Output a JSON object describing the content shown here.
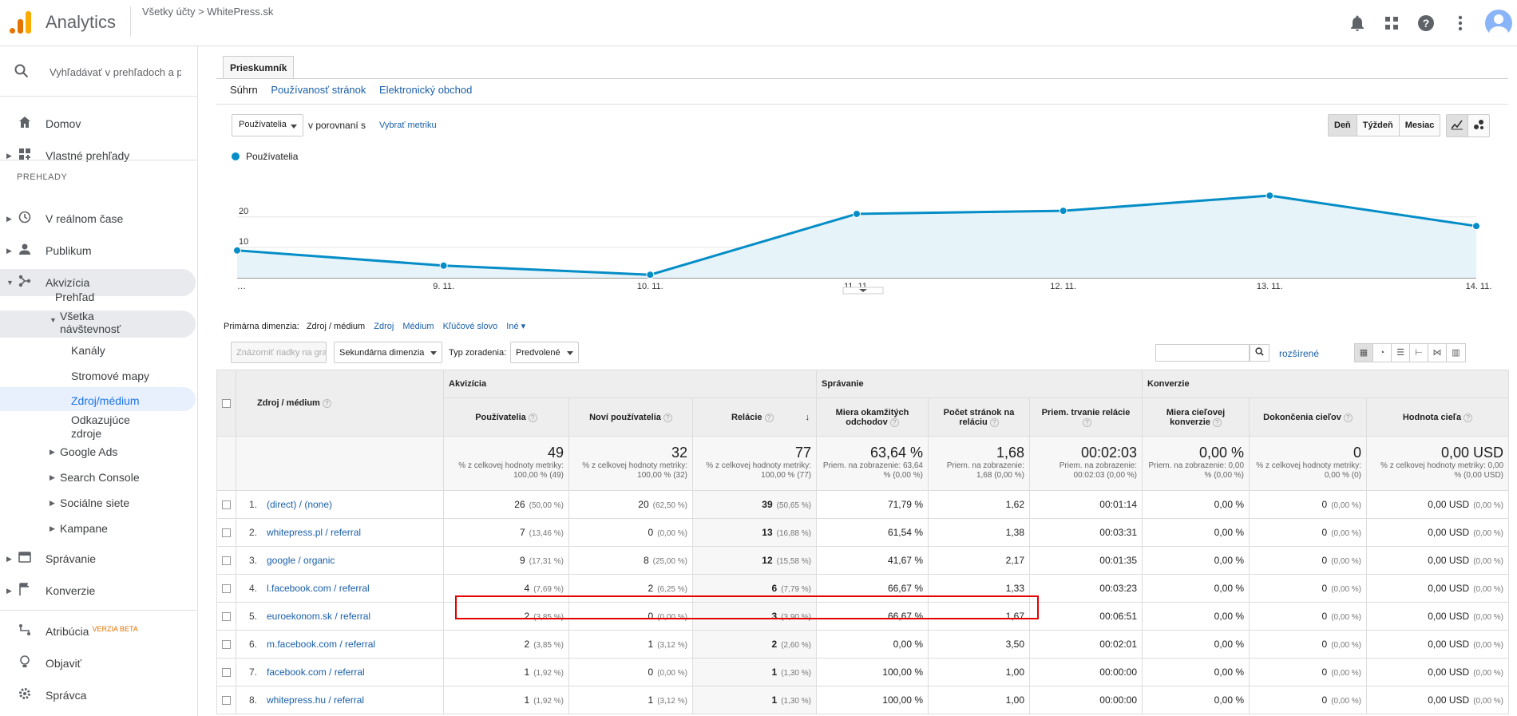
{
  "app": {
    "name": "Analytics",
    "breadcrumb": "Všetky účty > WhitePress.sk"
  },
  "topicons": [
    "bell-icon",
    "apps-icon",
    "help-icon",
    "more-icon"
  ],
  "sidebar": {
    "search_placeholder": "Vyhľadávať v prehľadoch a p",
    "home": "Domov",
    "custom": "Vlastné prehľady",
    "section": "PREHĽADY",
    "realtime": "V reálnom čase",
    "audience": "Publikum",
    "acquisition": "Akvizícia",
    "overview": "Prehľad",
    "alltraffic": "Všetka návštevnosť",
    "channels": "Kanály",
    "treemaps": "Stromové mapy",
    "sourcemedium": "Zdroj/médium",
    "referrals": "Odkazujúce zdroje",
    "googleads": "Google Ads",
    "searchconsole": "Search Console",
    "social": "Sociálne siete",
    "campaigns": "Kampane",
    "behavior": "Správanie",
    "conversions": "Konverzie",
    "attribution": "Atribúcia",
    "beta": "VERZIA BETA",
    "discover": "Objaviť",
    "admin": "Správca"
  },
  "tabs": {
    "explorer": "Prieskumník",
    "summary": "Súhrn",
    "usage": "Používanosť stránok",
    "ecommerce": "Elektronický obchod"
  },
  "chart_controls": {
    "metric": "Používatelia",
    "compare": "v porovnaní s",
    "pick": "Vybrať metriku",
    "day": "Deň",
    "week": "Týždeň",
    "month": "Mesiac"
  },
  "chart_data": {
    "type": "area",
    "series": [
      {
        "name": "Používatelia",
        "values": [
          9,
          4,
          1,
          21,
          22,
          27,
          17
        ]
      }
    ],
    "x": [
      "…",
      "9. 11.",
      "10. 11.",
      "11. 11.",
      "12. 11.",
      "13. 11.",
      "14. 11."
    ],
    "yticks": [
      "20",
      "10"
    ],
    "ylim": [
      0,
      32
    ],
    "color": "#058dc7"
  },
  "dims": {
    "label": "Primárna dimenzia:",
    "current": "Zdroj / médium",
    "source": "Zdroj",
    "medium": "Médium",
    "keyword": "Kľúčové slovo",
    "other": "Iné"
  },
  "toolbar": {
    "plot": "Znázorniť riadky na grafe",
    "secondary": "Sekundárna dimenzia",
    "sortlabel": "Typ zoradenia:",
    "sort": "Predvolené",
    "advanced": "rozšírené"
  },
  "table": {
    "groups": {
      "acq": "Akvizícia",
      "beh": "Správanie",
      "conv": "Konverzie"
    },
    "dimcol": "Zdroj / médium",
    "cols": [
      "Používatelia",
      "Noví používatelia",
      "Relácie",
      "Miera okamžitých odchodov",
      "Počet stránok na reláciu",
      "Priem. trvanie relácie",
      "Miera cieľovej konverzie",
      "Dokončenia cieľov",
      "Hodnota cieľa"
    ],
    "totals": [
      {
        "v": "49",
        "s": "% z celkovej hodnoty metriky: 100,00 % (49)"
      },
      {
        "v": "32",
        "s": "% z celkovej hodnoty metriky: 100,00 % (32)"
      },
      {
        "v": "77",
        "s": "% z celkovej hodnoty metriky: 100,00 % (77)"
      },
      {
        "v": "63,64 %",
        "s": "Priem. na zobrazenie: 63,64 % (0,00 %)"
      },
      {
        "v": "1,68",
        "s": "Priem. na zobrazenie: 1,68 (0,00 %)"
      },
      {
        "v": "00:02:03",
        "s": "Priem. na zobrazenie: 00:02:03 (0,00 %)"
      },
      {
        "v": "0,00 %",
        "s": "Priem. na zobrazenie: 0,00 % (0,00 %)"
      },
      {
        "v": "0",
        "s": "% z celkovej hodnoty metriky: 0,00 % (0)"
      },
      {
        "v": "0,00 USD",
        "s": "% z celkovej hodnoty metriky: 0,00 % (0,00 USD)"
      }
    ],
    "rows": [
      {
        "n": "1.",
        "name": "(direct) / (none)",
        "u": "26",
        "up": "(50,00 %)",
        "nu": "20",
        "nup": "(62,50 %)",
        "s": "39",
        "sp": "(50,65 %)",
        "b": "71,79 %",
        "p": "1,62",
        "d": "00:01:14",
        "cr": "0,00 %",
        "g": "0",
        "gp": "(0,00 %)",
        "val": "0,00 USD",
        "valp": "(0,00 %)"
      },
      {
        "n": "2.",
        "name": "whitepress.pl / referral",
        "u": "7",
        "up": "(13,46 %)",
        "nu": "0",
        "nup": "(0,00 %)",
        "s": "13",
        "sp": "(16,88 %)",
        "b": "61,54 %",
        "p": "1,38",
        "d": "00:03:31",
        "cr": "0,00 %",
        "g": "0",
        "gp": "(0,00 %)",
        "val": "0,00 USD",
        "valp": "(0,00 %)"
      },
      {
        "n": "3.",
        "name": "google / organic",
        "u": "9",
        "up": "(17,31 %)",
        "nu": "8",
        "nup": "(25,00 %)",
        "s": "12",
        "sp": "(15,58 %)",
        "b": "41,67 %",
        "p": "2,17",
        "d": "00:01:35",
        "cr": "0,00 %",
        "g": "0",
        "gp": "(0,00 %)",
        "val": "0,00 USD",
        "valp": "(0,00 %)"
      },
      {
        "n": "4.",
        "name": "l.facebook.com / referral",
        "u": "4",
        "up": "(7,69 %)",
        "nu": "2",
        "nup": "(6,25 %)",
        "s": "6",
        "sp": "(7,79 %)",
        "b": "66,67 %",
        "p": "1,33",
        "d": "00:03:23",
        "cr": "0,00 %",
        "g": "0",
        "gp": "(0,00 %)",
        "val": "0,00 USD",
        "valp": "(0,00 %)"
      },
      {
        "n": "5.",
        "name": "euroekonom.sk / referral",
        "u": "2",
        "up": "(3,85 %)",
        "nu": "0",
        "nup": "(0,00 %)",
        "s": "3",
        "sp": "(3,90 %)",
        "b": "66,67 %",
        "p": "1,67",
        "d": "00:06:51",
        "cr": "0,00 %",
        "g": "0",
        "gp": "(0,00 %)",
        "val": "0,00 USD",
        "valp": "(0,00 %)"
      },
      {
        "n": "6.",
        "name": "m.facebook.com / referral",
        "u": "2",
        "up": "(3,85 %)",
        "nu": "1",
        "nup": "(3,12 %)",
        "s": "2",
        "sp": "(2,60 %)",
        "b": "0,00 %",
        "p": "3,50",
        "d": "00:02:01",
        "cr": "0,00 %",
        "g": "0",
        "gp": "(0,00 %)",
        "val": "0,00 USD",
        "valp": "(0,00 %)"
      },
      {
        "n": "7.",
        "name": "facebook.com / referral",
        "u": "1",
        "up": "(1,92 %)",
        "nu": "0",
        "nup": "(0,00 %)",
        "s": "1",
        "sp": "(1,30 %)",
        "b": "100,00 %",
        "p": "1,00",
        "d": "00:00:00",
        "cr": "0,00 %",
        "g": "0",
        "gp": "(0,00 %)",
        "val": "0,00 USD",
        "valp": "(0,00 %)"
      },
      {
        "n": "8.",
        "name": "whitepress.hu / referral",
        "u": "1",
        "up": "(1,92 %)",
        "nu": "1",
        "nup": "(3,12 %)",
        "s": "1",
        "sp": "(1,30 %)",
        "b": "100,00 %",
        "p": "1,00",
        "d": "00:00:00",
        "cr": "0,00 %",
        "g": "0",
        "gp": "(0,00 %)",
        "val": "0,00 USD",
        "valp": "(0,00 %)"
      }
    ]
  }
}
